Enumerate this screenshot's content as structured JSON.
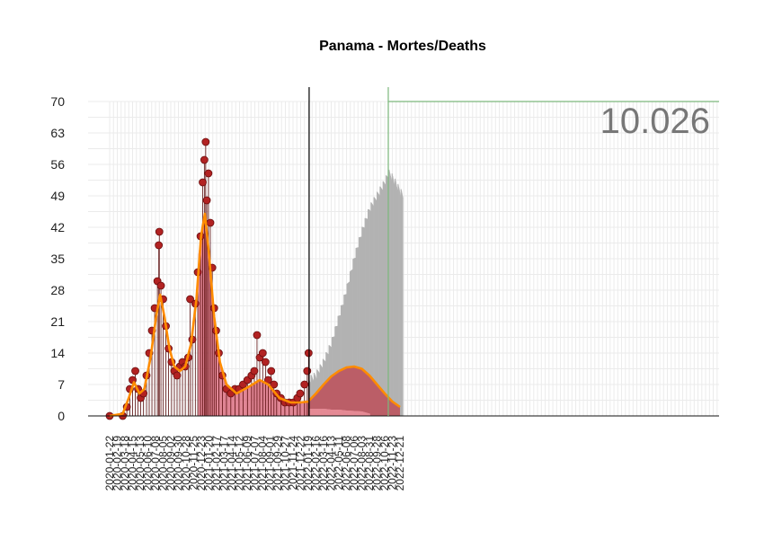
{
  "chart_data": {
    "type": "bar",
    "title": "Panama - Mortes/Deaths",
    "total_label": "10.026",
    "ylim": [
      0,
      70
    ],
    "y_ticks": [
      "0",
      "7",
      "14",
      "21",
      "28",
      "35",
      "42",
      "49",
      "56",
      "63",
      "70"
    ],
    "x_tick_labels": [
      "2020-01-22",
      "2020-02-19",
      "2020-03-18",
      "2020-04-15",
      "2020-05-13",
      "2020-06-10",
      "2020-07-08",
      "2020-08-05",
      "2020-09-02",
      "2020-09-30",
      "2020-10-28",
      "2020-11-25",
      "2020-12-23",
      "2021-01-20",
      "2021-02-17",
      "2021-03-17",
      "2021-04-14",
      "2021-05-12",
      "2021-06-09",
      "2021-07-07",
      "2021-08-04",
      "2021-09-01",
      "2021-09-29",
      "2021-10-27",
      "2021-11-24",
      "2021-12-22",
      "2022-01-19",
      "2022-02-16",
      "2022-03-16",
      "2022-04-13",
      "2022-05-11",
      "2022-06-08",
      "2022-07-06",
      "2022-08-03",
      "2022-08-31",
      "2022-09-28",
      "2022-10-26",
      "2022-11-23",
      "2022-12-21"
    ],
    "x_tick_step_days": 28,
    "observed_end_date": "2022-01-22",
    "series": [
      {
        "role": "observed_daily_deaths",
        "style": "points",
        "color": "#b22222",
        "points": [
          [
            "2020-01-22",
            0
          ],
          [
            "2020-03-10",
            0
          ],
          [
            "2020-03-25",
            2
          ],
          [
            "2020-04-05",
            6
          ],
          [
            "2020-04-15",
            8
          ],
          [
            "2020-04-25",
            10
          ],
          [
            "2020-05-05",
            6
          ],
          [
            "2020-05-15",
            4
          ],
          [
            "2020-05-25",
            5
          ],
          [
            "2020-06-05",
            9
          ],
          [
            "2020-06-15",
            14
          ],
          [
            "2020-06-25",
            19
          ],
          [
            "2020-07-05",
            24
          ],
          [
            "2020-07-15",
            30
          ],
          [
            "2020-07-20",
            38
          ],
          [
            "2020-07-22",
            41
          ],
          [
            "2020-07-28",
            29
          ],
          [
            "2020-08-05",
            26
          ],
          [
            "2020-08-15",
            20
          ],
          [
            "2020-08-25",
            15
          ],
          [
            "2020-09-05",
            12
          ],
          [
            "2020-09-15",
            10
          ],
          [
            "2020-09-25",
            9
          ],
          [
            "2020-10-05",
            11
          ],
          [
            "2020-10-15",
            12
          ],
          [
            "2020-10-25",
            11
          ],
          [
            "2020-11-05",
            13
          ],
          [
            "2020-11-12",
            26
          ],
          [
            "2020-11-20",
            17
          ],
          [
            "2020-12-01",
            25
          ],
          [
            "2020-12-10",
            32
          ],
          [
            "2020-12-20",
            40
          ],
          [
            "2020-12-28",
            52
          ],
          [
            "2021-01-03",
            57
          ],
          [
            "2021-01-08",
            61
          ],
          [
            "2021-01-12",
            48
          ],
          [
            "2021-01-18",
            54
          ],
          [
            "2021-01-25",
            43
          ],
          [
            "2021-02-01",
            33
          ],
          [
            "2021-02-08",
            24
          ],
          [
            "2021-02-15",
            19
          ],
          [
            "2021-02-25",
            14
          ],
          [
            "2021-03-10",
            9
          ],
          [
            "2021-03-25",
            6
          ],
          [
            "2021-04-10",
            5
          ],
          [
            "2021-04-25",
            6
          ],
          [
            "2021-05-10",
            6
          ],
          [
            "2021-05-25",
            7
          ],
          [
            "2021-06-10",
            8
          ],
          [
            "2021-06-25",
            9
          ],
          [
            "2021-07-05",
            10
          ],
          [
            "2021-07-15",
            18
          ],
          [
            "2021-07-25",
            13
          ],
          [
            "2021-08-05",
            14
          ],
          [
            "2021-08-15",
            12
          ],
          [
            "2021-08-25",
            8
          ],
          [
            "2021-09-05",
            10
          ],
          [
            "2021-09-15",
            7
          ],
          [
            "2021-09-25",
            5
          ],
          [
            "2021-10-10",
            4
          ],
          [
            "2021-10-25",
            3
          ],
          [
            "2021-11-10",
            3
          ],
          [
            "2021-11-25",
            3
          ],
          [
            "2021-12-10",
            4
          ],
          [
            "2021-12-20",
            5
          ],
          [
            "2022-01-05",
            7
          ],
          [
            "2022-01-15",
            10
          ],
          [
            "2022-01-20",
            14
          ]
        ]
      },
      {
        "role": "observed_trend",
        "style": "line",
        "color": "#ff8c00",
        "points": [
          [
            "2020-01-22",
            0
          ],
          [
            "2020-03-10",
            0.5
          ],
          [
            "2020-04-01",
            4
          ],
          [
            "2020-04-20",
            7.5
          ],
          [
            "2020-05-10",
            5
          ],
          [
            "2020-05-28",
            6
          ],
          [
            "2020-06-20",
            13
          ],
          [
            "2020-07-10",
            22
          ],
          [
            "2020-07-25",
            27
          ],
          [
            "2020-08-10",
            22
          ],
          [
            "2020-08-28",
            15
          ],
          [
            "2020-09-15",
            11
          ],
          [
            "2020-10-05",
            10
          ],
          [
            "2020-10-25",
            11
          ],
          [
            "2020-11-15",
            16
          ],
          [
            "2020-12-05",
            26
          ],
          [
            "2020-12-22",
            40
          ],
          [
            "2021-01-05",
            45
          ],
          [
            "2021-01-20",
            36
          ],
          [
            "2021-02-08",
            22
          ],
          [
            "2021-03-01",
            12
          ],
          [
            "2021-03-25",
            7
          ],
          [
            "2021-05-01",
            5
          ],
          [
            "2021-06-15",
            6.5
          ],
          [
            "2021-07-25",
            8
          ],
          [
            "2021-08-25",
            7
          ],
          [
            "2021-10-05",
            4
          ],
          [
            "2021-11-15",
            3
          ],
          [
            "2021-12-20",
            3
          ],
          [
            "2022-01-20",
            3.2
          ]
        ]
      },
      {
        "role": "observed_area",
        "style": "area",
        "color": "#d9687b",
        "points": [
          [
            "2020-12-12",
            36
          ],
          [
            "2020-12-22",
            40
          ],
          [
            "2021-01-05",
            45
          ],
          [
            "2021-01-20",
            36
          ],
          [
            "2021-02-08",
            22
          ],
          [
            "2021-03-01",
            12
          ],
          [
            "2021-03-25",
            7
          ],
          [
            "2021-05-01",
            5
          ],
          [
            "2021-06-15",
            6.5
          ],
          [
            "2021-07-25",
            8
          ],
          [
            "2021-08-25",
            7
          ],
          [
            "2021-10-05",
            4
          ],
          [
            "2021-11-15",
            3
          ],
          [
            "2021-12-20",
            3
          ],
          [
            "2022-01-20",
            3.2
          ]
        ]
      },
      {
        "role": "projection_upper",
        "style": "bars",
        "color": "#b3b3b3",
        "points": [
          [
            "2022-01-23",
            8
          ],
          [
            "2022-02-16",
            9
          ],
          [
            "2022-03-16",
            12
          ],
          [
            "2022-04-13",
            16
          ],
          [
            "2022-05-11",
            22
          ],
          [
            "2022-06-08",
            28
          ],
          [
            "2022-07-06",
            35
          ],
          [
            "2022-08-03",
            41
          ],
          [
            "2022-08-31",
            46
          ],
          [
            "2022-09-28",
            49
          ],
          [
            "2022-10-26",
            52
          ],
          [
            "2022-11-10",
            54
          ],
          [
            "2022-11-23",
            53
          ],
          [
            "2022-12-21",
            50
          ],
          [
            "2022-12-31",
            49
          ]
        ]
      },
      {
        "role": "projection_mid",
        "style": "area",
        "color": "#bc5a63",
        "points": [
          [
            "2022-01-23",
            3.5
          ],
          [
            "2022-02-16",
            5
          ],
          [
            "2022-03-16",
            7
          ],
          [
            "2022-04-13",
            8.8
          ],
          [
            "2022-05-11",
            10
          ],
          [
            "2022-06-08",
            10.8
          ],
          [
            "2022-07-06",
            11
          ],
          [
            "2022-08-03",
            10.5
          ],
          [
            "2022-08-31",
            9
          ],
          [
            "2022-09-28",
            7
          ],
          [
            "2022-10-26",
            5
          ],
          [
            "2022-11-23",
            3.2
          ],
          [
            "2022-12-21",
            2
          ]
        ]
      },
      {
        "role": "projection_lower",
        "style": "bars",
        "color": "#e58a95",
        "points": [
          [
            "2022-01-23",
            1.6
          ],
          [
            "2022-03-16",
            1.6
          ],
          [
            "2022-04-13",
            1.4
          ],
          [
            "2022-05-11",
            1.4
          ],
          [
            "2022-06-08",
            1.2
          ],
          [
            "2022-07-06",
            1.1
          ],
          [
            "2022-08-03",
            1.0
          ],
          [
            "2022-09-01",
            0.5
          ]
        ]
      },
      {
        "role": "projection_trend",
        "style": "line",
        "color": "#ff8c00",
        "points": [
          [
            "2022-01-23",
            3.5
          ],
          [
            "2022-02-16",
            5
          ],
          [
            "2022-03-16",
            7
          ],
          [
            "2022-04-13",
            8.8
          ],
          [
            "2022-05-11",
            10
          ],
          [
            "2022-06-08",
            10.8
          ],
          [
            "2022-07-06",
            11
          ],
          [
            "2022-08-03",
            10.5
          ],
          [
            "2022-08-31",
            9
          ],
          [
            "2022-09-28",
            7
          ],
          [
            "2022-10-26",
            5
          ],
          [
            "2022-11-23",
            3.2
          ],
          [
            "2022-12-21",
            2
          ]
        ]
      }
    ],
    "reference_lines": [
      {
        "axis": "x",
        "value": "2022-01-22",
        "color": "#000000"
      },
      {
        "axis": "x",
        "value": "2022-11-08",
        "color": "#7cb87c"
      },
      {
        "axis": "y",
        "value": 70,
        "from": "2022-11-08",
        "color": "#7cb87c"
      }
    ],
    "grid": true,
    "legend": "none",
    "colors": {
      "points": "#b22222",
      "trend": "#ff8c00",
      "observed_area": "#d9687b",
      "projection_upper": "#b3b3b3",
      "projection_mid": "#bc5a63",
      "projection_lower": "#e58a95",
      "reference_green": "#7cb87c",
      "total_text": "#777777"
    }
  }
}
